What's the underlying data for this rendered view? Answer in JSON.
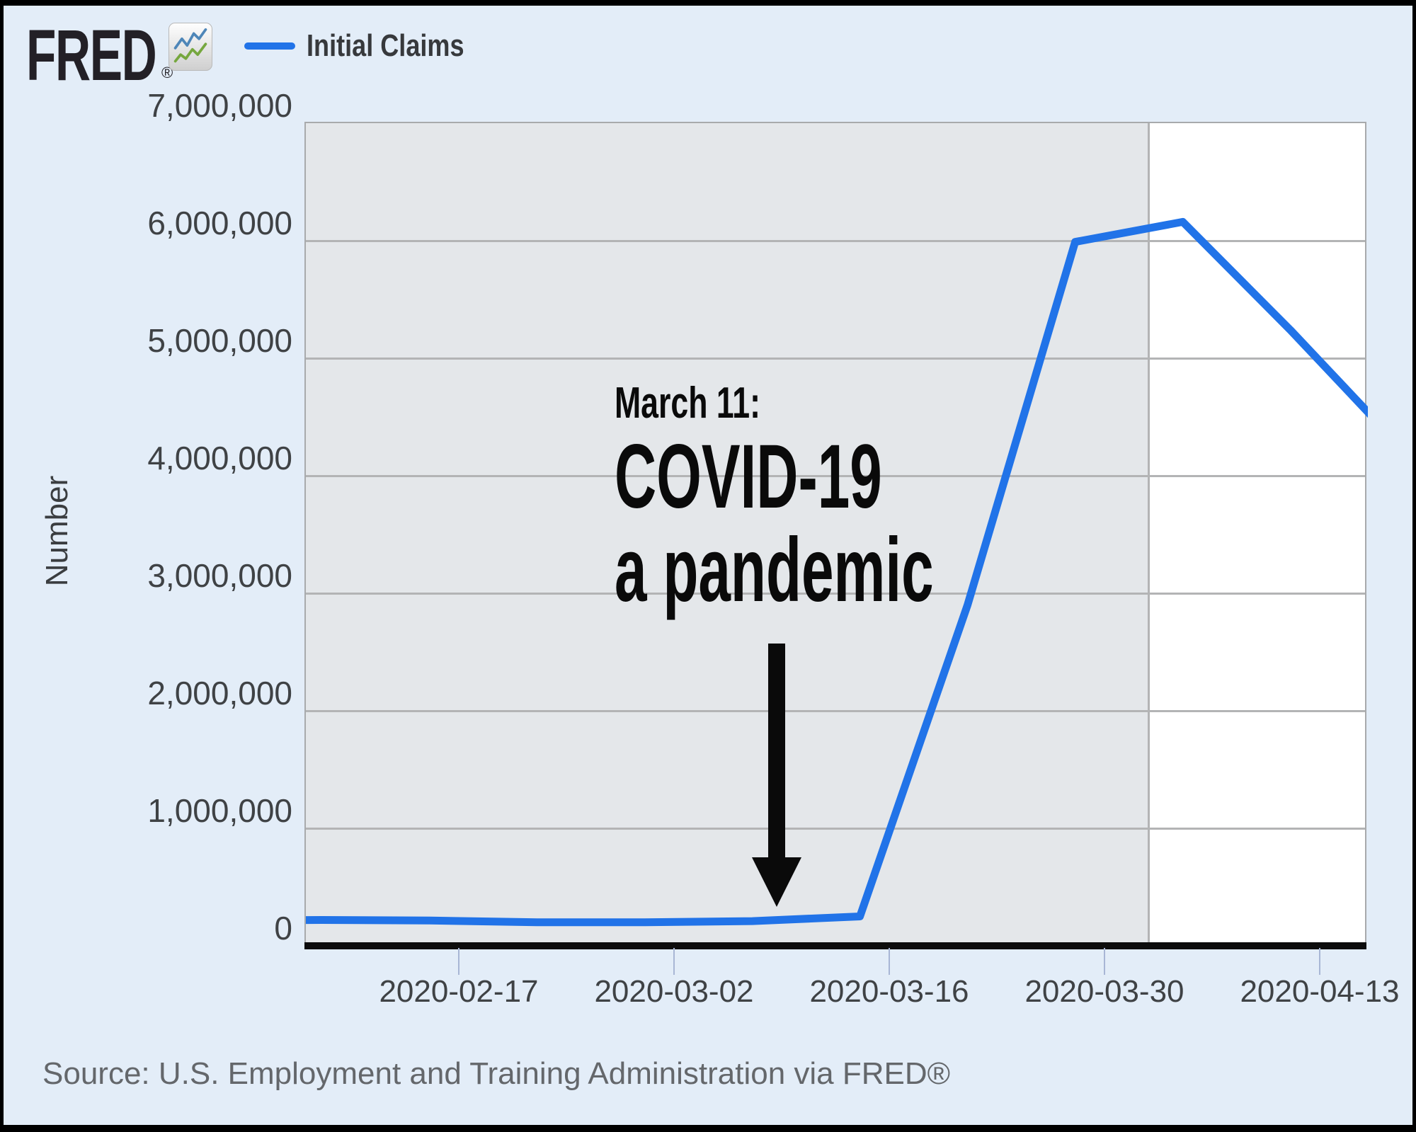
{
  "header": {
    "logo_text": "FRED",
    "logo_registered": "®",
    "logo_icon": "fred-sparkline-icon",
    "legend": {
      "series_label": "Initial Claims",
      "swatch_color": "#2173e8"
    }
  },
  "chart_data": {
    "type": "line",
    "title": "Initial Claims",
    "ylabel": "Number",
    "xlabel": "",
    "grid": true,
    "legend_position": "top-left",
    "ylim": [
      0,
      7000000
    ],
    "y_tick_labels": [
      "7,000,000",
      "6,000,000",
      "5,000,000",
      "4,000,000",
      "3,000,000",
      "2,000,000",
      "1,000,000",
      "0"
    ],
    "x_tick_labels": [
      "2020-02-17",
      "2020-03-02",
      "2020-03-16",
      "2020-03-30",
      "2020-04-13"
    ],
    "x_range_visible": [
      "2020-02-07",
      "2020-04-16"
    ],
    "shaded_region": {
      "color": "#e4e7ea",
      "end_date": "2020-04-01",
      "note": "gray plot background before ~April 1; white after"
    },
    "series": [
      {
        "name": "Initial Claims",
        "color": "#2173e8",
        "points": [
          {
            "date": "2020-02-01",
            "value": 215000
          },
          {
            "date": "2020-02-08",
            "value": 220000
          },
          {
            "date": "2020-02-15",
            "value": 215000
          },
          {
            "date": "2020-02-22",
            "value": 200000
          },
          {
            "date": "2020-02-29",
            "value": 200000
          },
          {
            "date": "2020-03-07",
            "value": 210000
          },
          {
            "date": "2020-03-14",
            "value": 250000
          },
          {
            "date": "2020-03-21",
            "value": 2900000
          },
          {
            "date": "2020-03-28",
            "value": 5990000
          },
          {
            "date": "2020-04-04",
            "value": 6160000
          },
          {
            "date": "2020-04-11",
            "value": 5240000
          },
          {
            "date": "2020-04-18",
            "value": 4270000
          }
        ]
      }
    ]
  },
  "annotation": {
    "line1": "March 11:",
    "line2": "COVID-19",
    "line3": "a pandemic",
    "arrow": "down-arrow"
  },
  "source": {
    "text": "Source: U.S. Employment and Training Administration via FRED®"
  }
}
